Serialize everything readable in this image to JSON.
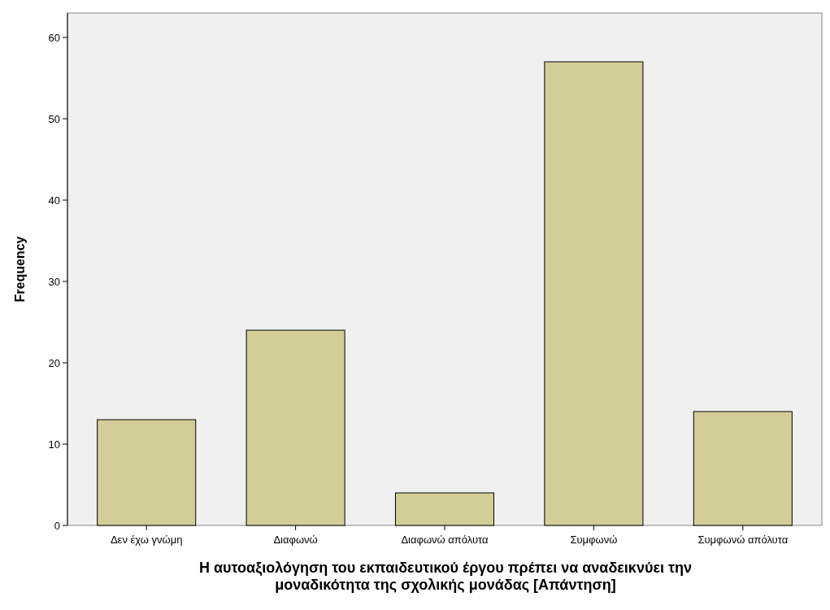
{
  "chart_data": {
    "type": "bar",
    "xlabel": "Η αυτοαξιολόγηση του εκπαιδευτικού έργου πρέπει να αναδεικνύει την\nμοναδικότητα της σχολικής μονάδας  [Απάντηση]",
    "ylabel": "Frequency",
    "categories": [
      "Δεν έχω γνώμη",
      "Διαφωνώ",
      "Διαφωνώ απόλυτα",
      "Συμφωνώ",
      "Συμφωνώ απόλυτα"
    ],
    "values": [
      13,
      24,
      4,
      57,
      14
    ],
    "color": "#d3ce97",
    "ylim": [
      0,
      63
    ],
    "yticks": [
      0,
      10,
      20,
      30,
      40,
      50,
      60
    ],
    "grid": false
  }
}
